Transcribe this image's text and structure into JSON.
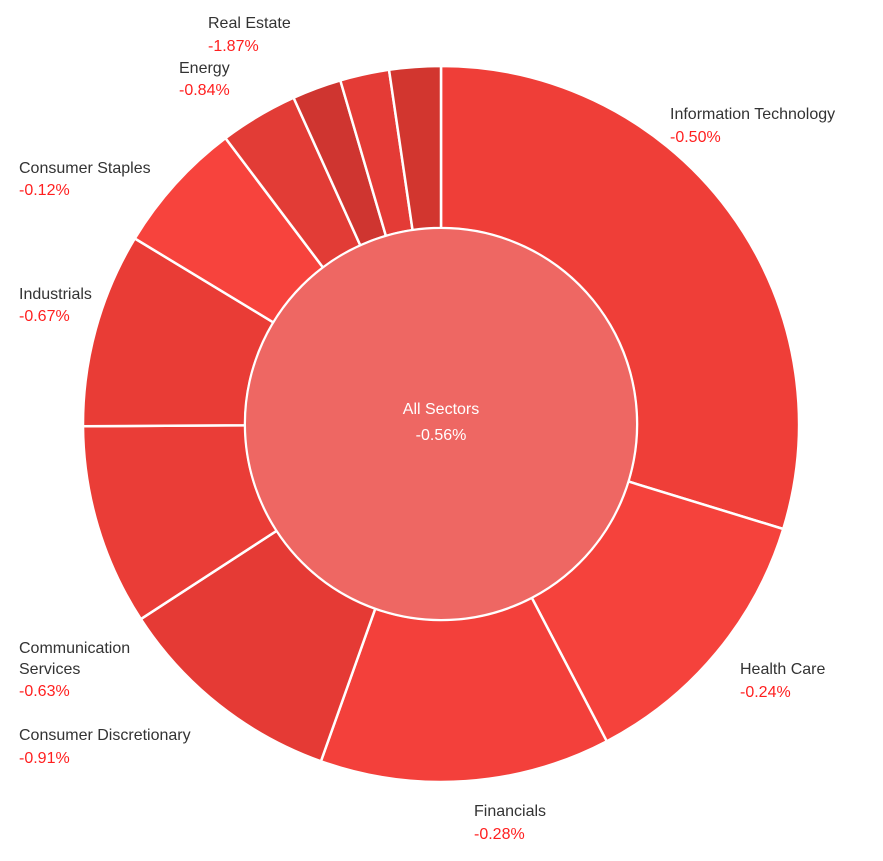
{
  "chart_data": {
    "type": "pie",
    "center": {
      "name": "All Sectors",
      "change": "-0.56%"
    },
    "slices": [
      {
        "name": "Information Technology",
        "change": "-0.50%",
        "weight": 29.5,
        "color": "#ef3e38"
      },
      {
        "name": "Health Care",
        "change": "-0.24%",
        "weight": 12.5,
        "color": "#f5423c"
      },
      {
        "name": "Financials",
        "change": "-0.28%",
        "weight": 13.0,
        "color": "#f3403b"
      },
      {
        "name": "Consumer Discretionary",
        "change": "-0.91%",
        "weight": 10.3,
        "color": "#e53a35"
      },
      {
        "name": "Communication Services",
        "change": "-0.63%",
        "weight": 9.0,
        "color": "#ea3d37"
      },
      {
        "name": "Industrials",
        "change": "-0.67%",
        "weight": 8.7,
        "color": "#e93c36"
      },
      {
        "name": "Consumer Staples",
        "change": "-0.12%",
        "weight": 6.0,
        "color": "#f7433d"
      },
      {
        "name": "",
        "change": "",
        "weight": 3.5,
        "color": "#e23c36"
      },
      {
        "name": "",
        "change": "",
        "weight": 2.2,
        "color": "#cf3530"
      },
      {
        "name": "Energy",
        "change": "-0.84%",
        "weight": 2.2,
        "color": "#e43b36"
      },
      {
        "name": "Real Estate",
        "change": "-1.87%",
        "weight": 2.3,
        "color": "#d2362f"
      }
    ],
    "center_color": "#ee6763",
    "value_color": "#ff1f1f"
  },
  "labels": {
    "information_technology": {
      "name": "Information Technology",
      "value": "-0.50%"
    },
    "health_care": {
      "name": "Health Care",
      "value": "-0.24%"
    },
    "financials": {
      "name": "Financials",
      "value": "-0.28%"
    },
    "consumer_discretionary": {
      "name": "Consumer Discretionary",
      "value": "-0.91%"
    },
    "communication_services": {
      "name": "Communication\nServices",
      "value": "-0.63%"
    },
    "industrials": {
      "name": "Industrials",
      "value": "-0.67%"
    },
    "consumer_staples": {
      "name": "Consumer Staples",
      "value": "-0.12%"
    },
    "energy": {
      "name": "Energy",
      "value": "-0.84%"
    },
    "real_estate": {
      "name": "Real Estate",
      "value": "-1.87%"
    }
  }
}
